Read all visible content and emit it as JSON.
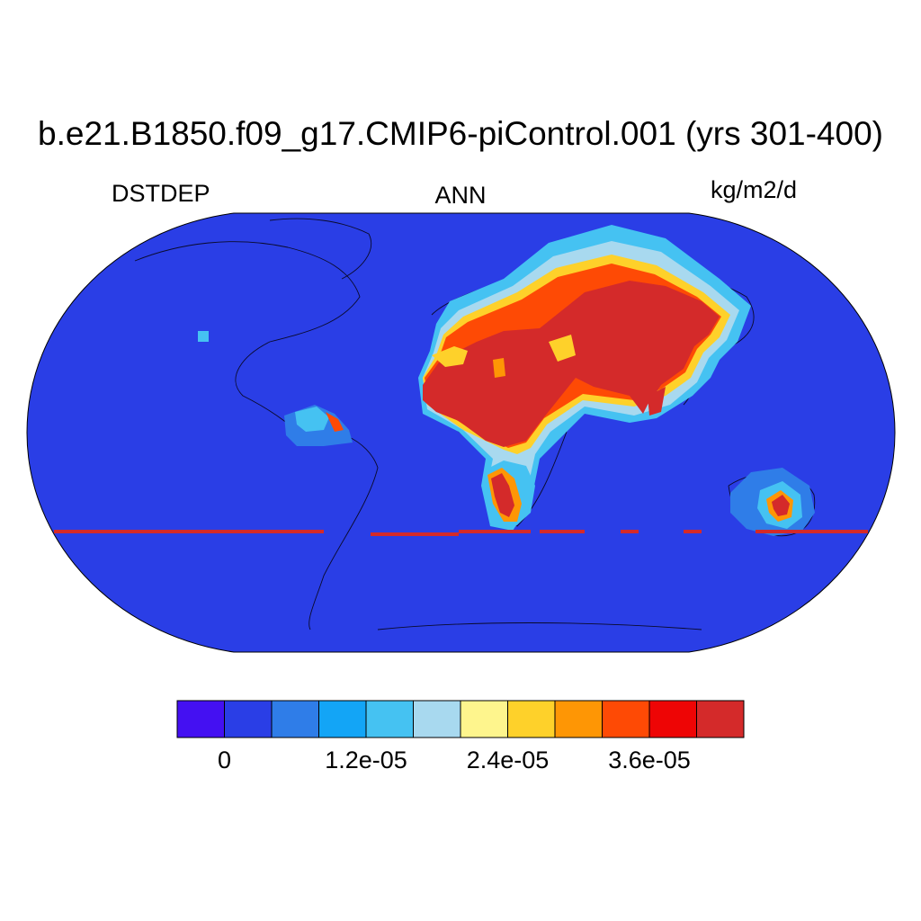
{
  "title": "b.e21.B1850.f09_g17.CMIP6-piControl.001 (yrs 301-400)",
  "left_label": "DSTDEP",
  "center_label": "ANN",
  "right_label": "kg/m2/d",
  "colorbar": {
    "colors": [
      "#4410f2",
      "#2a3ee6",
      "#2f7de8",
      "#13a5f6",
      "#45c2f2",
      "#a8d9ef",
      "#fef58d",
      "#fed12a",
      "#fe9605",
      "#fe4a05",
      "#ee0505",
      "#d42a2a"
    ],
    "tick_labels": [
      "0",
      "1.2e-05",
      "2.4e-05",
      "3.6e-05"
    ],
    "tick_after_box_index": [
      0,
      3,
      6,
      9
    ]
  },
  "map": {
    "projection": "Robinson",
    "background_color": "#2a3ee6",
    "high_deposition_regions": [
      "North Africa (Sahara)",
      "Arabian Peninsula",
      "Central Asia",
      "Indian subcontinent (north)",
      "Southern Africa (Kalahari)",
      "Central Australia",
      "Northern South America (coast)"
    ],
    "missing_band_color": "#d42a2a"
  }
}
